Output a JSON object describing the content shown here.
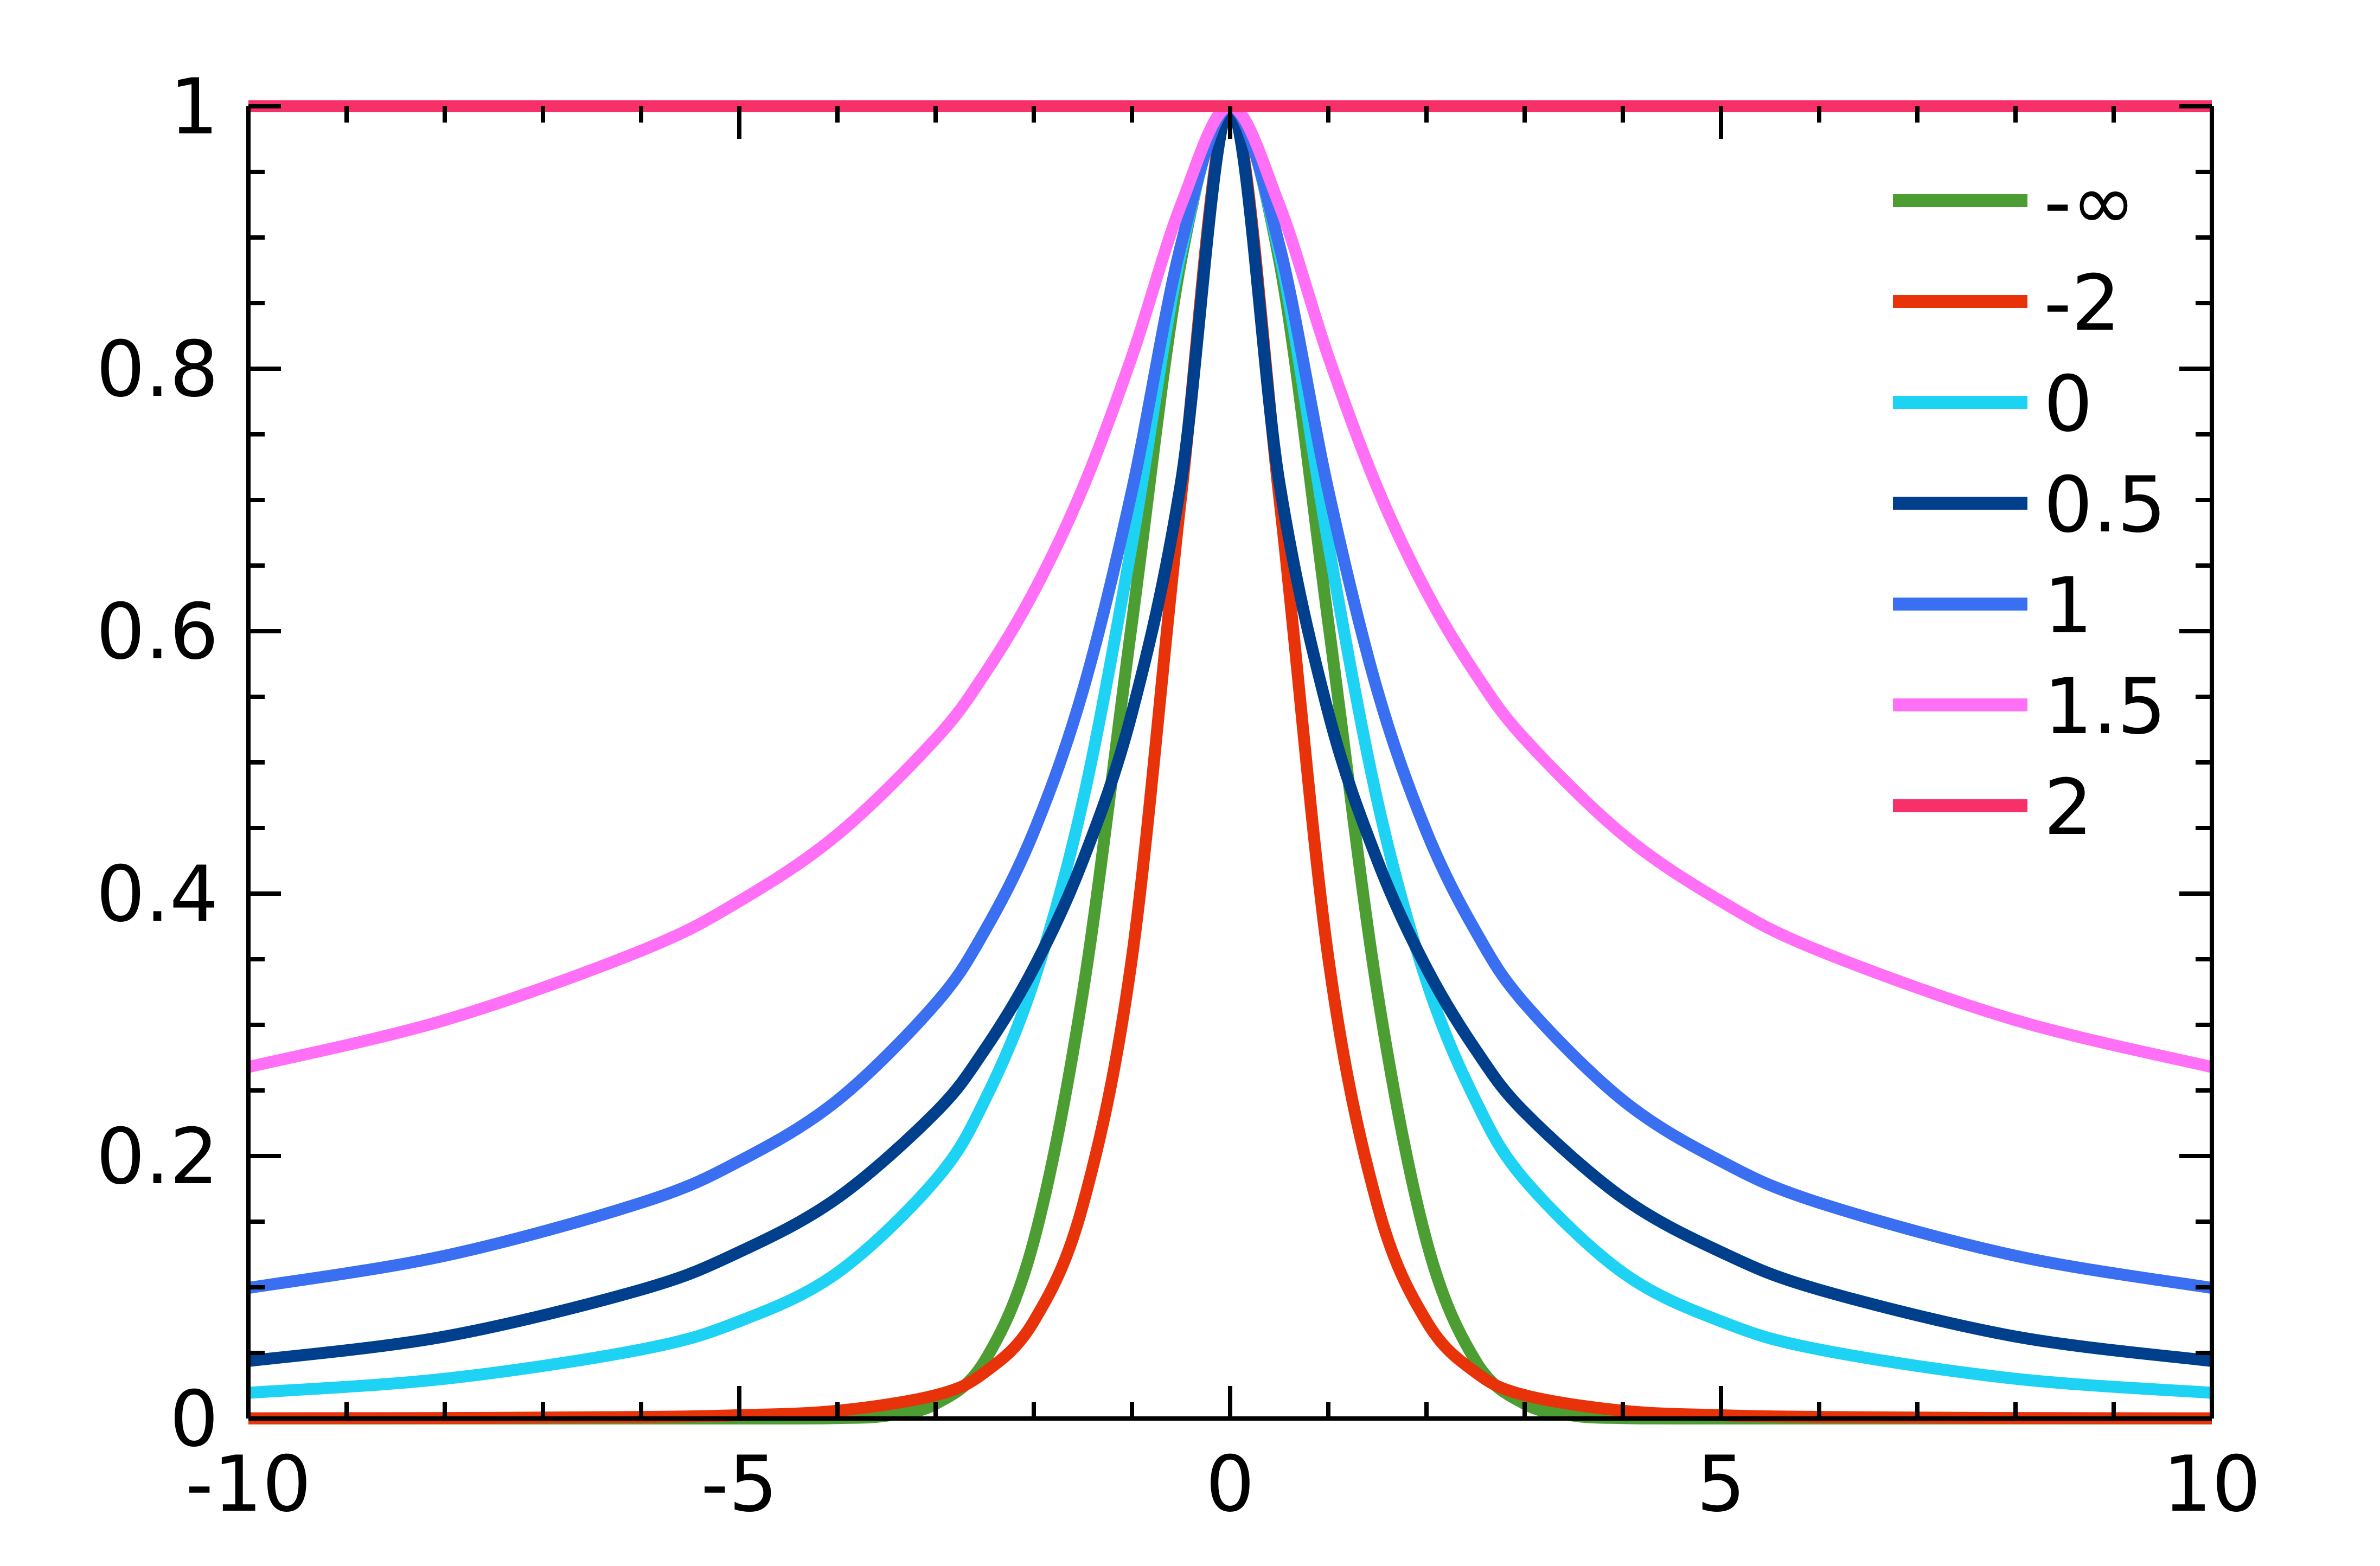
{
  "chart_data": {
    "type": "line",
    "title": "",
    "xlabel": "",
    "ylabel": "",
    "xlim": [
      -10,
      10
    ],
    "ylim": [
      0,
      1
    ],
    "x_ticks": [
      {
        "value": -10,
        "label": "-10"
      },
      {
        "value": -5,
        "label": "-5"
      },
      {
        "value": 0,
        "label": "0"
      },
      {
        "value": 5,
        "label": "5"
      },
      {
        "value": 10,
        "label": "10"
      }
    ],
    "y_ticks": [
      {
        "value": 0,
        "label": "0"
      },
      {
        "value": 0.2,
        "label": "0.2"
      },
      {
        "value": 0.4,
        "label": "0.4"
      },
      {
        "value": 0.6,
        "label": "0.6"
      },
      {
        "value": 0.8,
        "label": "0.8"
      },
      {
        "value": 1,
        "label": "1"
      }
    ],
    "x_minor_step": 1,
    "y_minor_step": 0.05,
    "grid": false,
    "legend_position": "top-right",
    "series": [
      {
        "name": "-∞",
        "color": "#4c9e32",
        "x": [
          -10,
          -5,
          -4,
          -3.5,
          -3,
          -2.5,
          -2,
          -1.5,
          -1,
          -0.5,
          0,
          0.5,
          1,
          1.5,
          2,
          2.5,
          3,
          3.5,
          4,
          5,
          10
        ],
        "y": [
          0,
          4e-06,
          0.00034,
          0.0022,
          0.0111,
          0.0439,
          0.1353,
          0.3247,
          0.6065,
          0.8825,
          1,
          0.8825,
          0.6065,
          0.3247,
          0.1353,
          0.0439,
          0.0111,
          0.0022,
          0.00034,
          4e-06,
          0
        ]
      },
      {
        "name": "-2",
        "color": "#e8330a",
        "x": [
          -10,
          -8,
          -6,
          -5,
          -4,
          -3,
          -2.5,
          -2,
          -1.5,
          -1,
          -0.5,
          0,
          0.5,
          1,
          1.5,
          2,
          2.5,
          3,
          4,
          5,
          6,
          8,
          10
        ],
        "y": [
          0.00015,
          0.00037,
          0.0012,
          0.0025,
          0.0059,
          0.0178,
          0.0352,
          0.0741,
          0.1627,
          0.3512,
          0.7023,
          1,
          0.7023,
          0.3512,
          0.1627,
          0.0741,
          0.0352,
          0.0178,
          0.0059,
          0.0025,
          0.0012,
          0.00037,
          0.00015
        ]
      },
      {
        "name": "0",
        "color": "#1ed2f4",
        "x": [
          -10,
          -8,
          -6,
          -5,
          -4,
          -3,
          -2.5,
          -2,
          -1.5,
          -1,
          -0.5,
          0,
          0.5,
          1,
          1.5,
          2,
          2.5,
          3,
          4,
          5,
          6,
          8,
          10
        ],
        "y": [
          0.0196,
          0.0303,
          0.0526,
          0.0741,
          0.1111,
          0.1818,
          0.2424,
          0.3333,
          0.4706,
          0.6667,
          0.8889,
          1,
          0.8889,
          0.6667,
          0.4706,
          0.3333,
          0.2424,
          0.1818,
          0.1111,
          0.0741,
          0.0526,
          0.0303,
          0.0196
        ]
      },
      {
        "name": "0.5",
        "color": "#003f8c",
        "x": [
          -10,
          -8,
          -6,
          -5,
          -4,
          -3,
          -2.5,
          -2,
          -1.5,
          -1,
          -0.5,
          0,
          0.5,
          1,
          1.5,
          2,
          2.5,
          3,
          4,
          5,
          6,
          8,
          10
        ],
        "y": [
          0.0438,
          0.0625,
          0.0982,
          0.1269,
          0.1681,
          0.2333,
          0.2812,
          0.3434,
          0.4253,
          0.5378,
          0.7137,
          1,
          0.7137,
          0.5378,
          0.4253,
          0.3434,
          0.2812,
          0.2333,
          0.1681,
          0.1269,
          0.0982,
          0.0625,
          0.0438
        ]
      },
      {
        "name": "1",
        "color": "#3a6ff2",
        "x": [
          -10,
          -8,
          -6,
          -5,
          -4,
          -3,
          -2.5,
          -2,
          -1.5,
          -1,
          -0.5,
          0,
          0.5,
          1,
          1.5,
          2,
          2.5,
          3,
          4,
          5,
          6,
          8,
          10
        ],
        "y": [
          0.0995,
          0.124,
          0.1644,
          0.1961,
          0.2425,
          0.3162,
          0.3714,
          0.4472,
          0.5547,
          0.7071,
          0.8944,
          1,
          0.8944,
          0.7071,
          0.5547,
          0.4472,
          0.3714,
          0.3162,
          0.2425,
          0.1961,
          0.1644,
          0.124,
          0.0995
        ]
      },
      {
        "name": "1.5",
        "color": "#ff70f6",
        "x": [
          -10,
          -8,
          -6,
          -5,
          -4,
          -3,
          -2.5,
          -2,
          -1.5,
          -1,
          -0.5,
          0,
          0.5,
          1,
          1.5,
          2,
          2.5,
          3,
          4,
          5,
          6,
          8,
          10
        ],
        "y": [
          0.2678,
          0.3036,
          0.3565,
          0.3942,
          0.445,
          0.5179,
          0.5675,
          0.63,
          0.7092,
          0.8094,
          0.9249,
          1,
          0.9249,
          0.8094,
          0.7092,
          0.63,
          0.5675,
          0.5179,
          0.445,
          0.3942,
          0.3565,
          0.3036,
          0.2678
        ]
      },
      {
        "name": "2",
        "color": "#f7306a",
        "x": [
          -10,
          10
        ],
        "y": [
          1,
          1
        ]
      }
    ]
  }
}
